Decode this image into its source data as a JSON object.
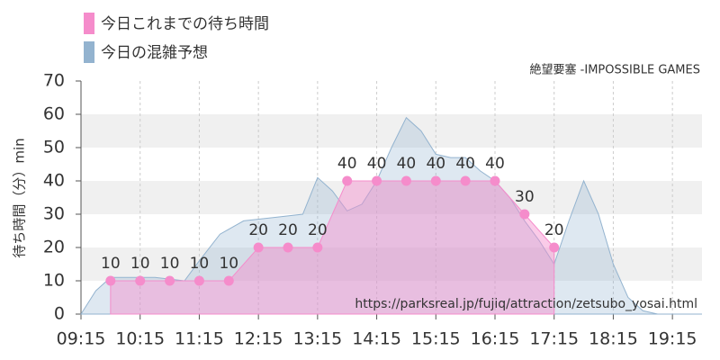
{
  "chart_data": {
    "type": "area",
    "attribution": "絶望要塞 -IMPOSSIBLE GAMES",
    "source_url": "https://parksreal.jp/fujiq/attraction/zetsubo_yosai.html",
    "y_label": "待ち時間（分）min",
    "xlim": [
      9.25,
      19.75
    ],
    "ylim": [
      0,
      70
    ],
    "xticks": [
      {
        "value": 9.25,
        "label": "09:15"
      },
      {
        "value": 10.25,
        "label": "10:15"
      },
      {
        "value": 11.25,
        "label": "11:15"
      },
      {
        "value": 12.25,
        "label": "12:15"
      },
      {
        "value": 13.25,
        "label": "13:15"
      },
      {
        "value": 14.25,
        "label": "14:15"
      },
      {
        "value": 15.25,
        "label": "15:15"
      },
      {
        "value": 16.25,
        "label": "16:15"
      },
      {
        "value": 17.25,
        "label": "17:15"
      },
      {
        "value": 18.25,
        "label": "18:15"
      },
      {
        "value": 19.25,
        "label": "19:15"
      }
    ],
    "yticks": [
      0,
      10,
      20,
      30,
      40,
      50,
      60,
      70
    ],
    "grid": true,
    "series": [
      {
        "name": "今日これまでの待ち時間",
        "color": "#f58ccb",
        "x": [
          9.75,
          10.25,
          10.75,
          11.25,
          11.75,
          12.25,
          12.75,
          13.25,
          13.75,
          14.25,
          14.75,
          15.25,
          15.75,
          16.25,
          16.75,
          17.25
        ],
        "values": [
          10,
          10,
          10,
          10,
          10,
          20,
          20,
          20,
          40,
          40,
          40,
          40,
          40,
          40,
          30,
          20
        ]
      },
      {
        "name": "今日の混雑予想",
        "color": "#93b3cf",
        "x": [
          9.25,
          9.5,
          9.75,
          10.0,
          10.5,
          11.0,
          11.25,
          11.6,
          12.0,
          12.5,
          13.0,
          13.25,
          13.5,
          13.75,
          14.0,
          14.25,
          14.5,
          14.75,
          15.0,
          15.25,
          15.5,
          15.75,
          16.0,
          16.25,
          16.5,
          16.75,
          17.0,
          17.25,
          17.5,
          17.75,
          18.0,
          18.25,
          18.5,
          18.75,
          19.0,
          19.5,
          19.75
        ],
        "values": [
          0,
          7,
          11,
          11,
          11,
          10,
          16,
          24,
          28,
          29,
          30,
          41,
          37,
          31,
          33,
          40,
          50,
          59,
          55,
          48,
          47,
          47,
          43,
          40,
          35,
          28,
          22,
          15,
          28,
          40,
          30,
          15,
          5,
          1,
          0,
          0,
          0
        ]
      }
    ]
  }
}
